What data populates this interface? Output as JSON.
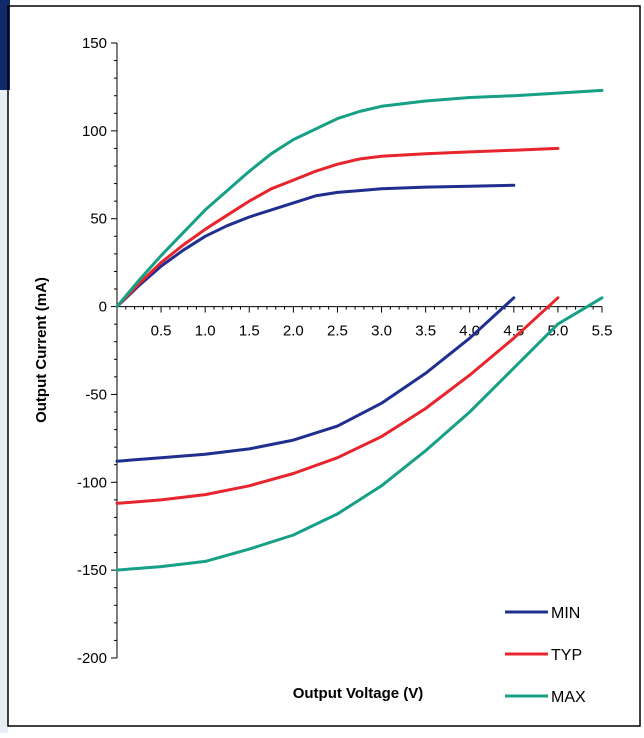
{
  "chart_data": {
    "type": "line",
    "title": "",
    "xlabel": "Output Voltage (V)",
    "ylabel": "Output Current (mA)",
    "xlim": [
      0,
      5.5
    ],
    "ylim": [
      -200,
      150
    ],
    "x_ticks": [
      "0.5",
      "1.0",
      "1.5",
      "2.0",
      "2.5",
      "3.0",
      "3.5",
      "4.0",
      "4.5",
      "5.0",
      "5.5"
    ],
    "y_ticks": [
      "150",
      "100",
      "50",
      "0",
      "-50",
      "-100",
      "-150",
      "-200"
    ],
    "grid": false,
    "legend_position": "bottom-right",
    "series": [
      {
        "name": "MIN",
        "color": "#1f2f8f",
        "source": [
          [
            0,
            0
          ],
          [
            0.25,
            12
          ],
          [
            0.5,
            23
          ],
          [
            0.75,
            32
          ],
          [
            1.0,
            40
          ],
          [
            1.25,
            46
          ],
          [
            1.5,
            51
          ],
          [
            1.75,
            55
          ],
          [
            2.0,
            59
          ],
          [
            2.25,
            63
          ],
          [
            2.5,
            65
          ],
          [
            2.75,
            66
          ],
          [
            3.0,
            67
          ],
          [
            3.5,
            68
          ],
          [
            4.0,
            68.5
          ],
          [
            4.5,
            69
          ]
        ],
        "sink": [
          [
            0,
            -88
          ],
          [
            0.5,
            -86
          ],
          [
            1.0,
            -84
          ],
          [
            1.5,
            -81
          ],
          [
            2.0,
            -76
          ],
          [
            2.5,
            -68
          ],
          [
            3.0,
            -55
          ],
          [
            3.5,
            -38
          ],
          [
            4.0,
            -18
          ],
          [
            4.5,
            5
          ]
        ]
      },
      {
        "name": "TYP",
        "color": "#e8242c",
        "source": [
          [
            0,
            0
          ],
          [
            0.25,
            13
          ],
          [
            0.5,
            25
          ],
          [
            0.75,
            35
          ],
          [
            1.0,
            44
          ],
          [
            1.25,
            52
          ],
          [
            1.5,
            60
          ],
          [
            1.75,
            67
          ],
          [
            2.0,
            72
          ],
          [
            2.25,
            77
          ],
          [
            2.5,
            81
          ],
          [
            2.75,
            84
          ],
          [
            3.0,
            85.5
          ],
          [
            3.5,
            87
          ],
          [
            4.0,
            88
          ],
          [
            4.5,
            89
          ],
          [
            5.0,
            90
          ]
        ],
        "sink": [
          [
            0,
            -112
          ],
          [
            0.5,
            -110
          ],
          [
            1.0,
            -107
          ],
          [
            1.5,
            -102
          ],
          [
            2.0,
            -95
          ],
          [
            2.5,
            -86
          ],
          [
            3.0,
            -74
          ],
          [
            3.5,
            -58
          ],
          [
            4.0,
            -39
          ],
          [
            4.5,
            -18
          ],
          [
            5.0,
            5
          ]
        ]
      },
      {
        "name": "MAX",
        "color": "#16a085",
        "source": [
          [
            0,
            0
          ],
          [
            0.25,
            15
          ],
          [
            0.5,
            29
          ],
          [
            0.75,
            42
          ],
          [
            1.0,
            55
          ],
          [
            1.25,
            66
          ],
          [
            1.5,
            77
          ],
          [
            1.75,
            87
          ],
          [
            2.0,
            95
          ],
          [
            2.25,
            101
          ],
          [
            2.5,
            107
          ],
          [
            2.75,
            111
          ],
          [
            3.0,
            114
          ],
          [
            3.5,
            117
          ],
          [
            4.0,
            119
          ],
          [
            4.5,
            120
          ],
          [
            5.0,
            121.5
          ],
          [
            5.5,
            123
          ]
        ],
        "sink": [
          [
            0,
            -150
          ],
          [
            0.5,
            -148
          ],
          [
            1.0,
            -145
          ],
          [
            1.5,
            -138
          ],
          [
            2.0,
            -130
          ],
          [
            2.5,
            -118
          ],
          [
            3.0,
            -102
          ],
          [
            3.5,
            -82
          ],
          [
            4.0,
            -60
          ],
          [
            4.5,
            -35
          ],
          [
            5.0,
            -10
          ],
          [
            5.5,
            5
          ]
        ]
      }
    ]
  }
}
